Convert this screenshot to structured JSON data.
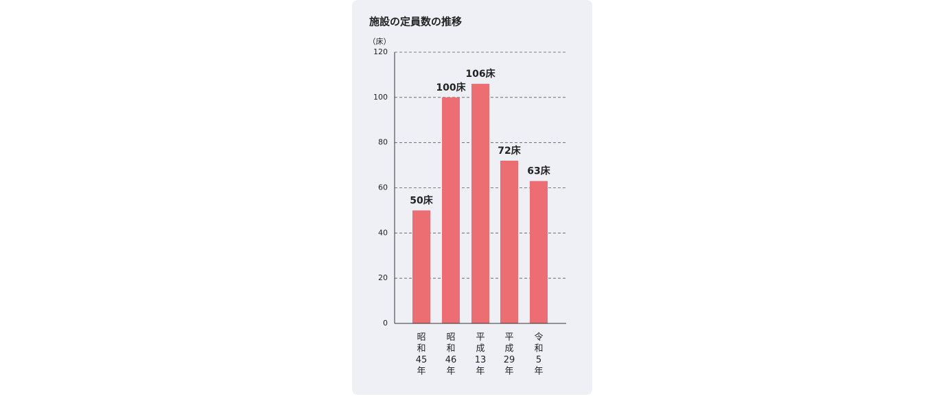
{
  "chart_data": {
    "type": "bar",
    "title": "施設の定員数の推移",
    "y_label": "（床）",
    "categories": [
      "昭和45年",
      "昭和46年",
      "平成13年",
      "平成29年",
      "令和5年"
    ],
    "values": [
      50,
      100,
      106,
      72,
      63
    ],
    "value_labels": [
      "50床",
      "100床",
      "106床",
      "72床",
      "63床"
    ],
    "color": "#ec6e73",
    "ylim": [
      0,
      120
    ],
    "yticks": [
      0,
      20,
      40,
      60,
      80,
      100,
      120
    ],
    "grid": true
  }
}
